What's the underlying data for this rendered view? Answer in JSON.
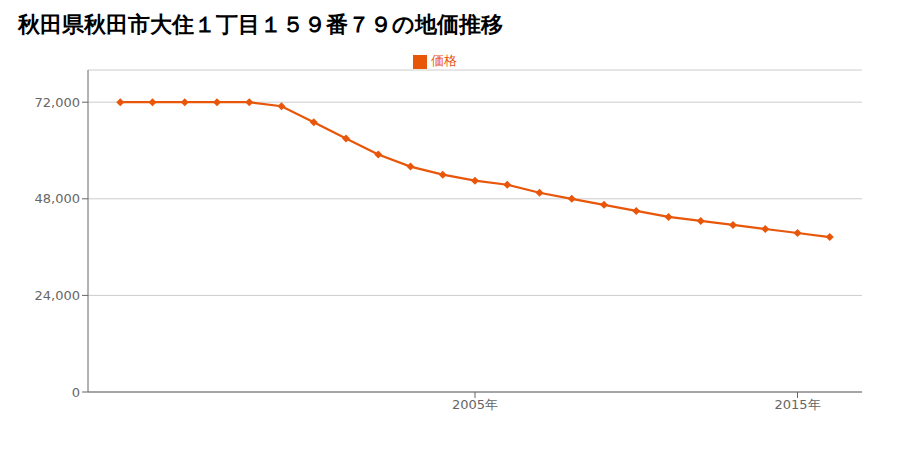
{
  "chart_data": {
    "type": "line",
    "title": "秋田県秋田市大住１丁目１５９番７９の地価推移",
    "x": [
      1994,
      1995,
      1996,
      1997,
      1998,
      1999,
      2000,
      2001,
      2002,
      2003,
      2004,
      2005,
      2006,
      2007,
      2008,
      2009,
      2010,
      2011,
      2012,
      2013,
      2014,
      2015,
      2016
    ],
    "series": [
      {
        "name": "価格",
        "color": "#e8560a",
        "marker": "diamond",
        "values": [
          72000,
          72000,
          72000,
          72000,
          72000,
          71000,
          67000,
          63000,
          59000,
          56000,
          54000,
          52500,
          51500,
          49500,
          48000,
          46500,
          45000,
          43500,
          42500,
          41500,
          40500,
          39500,
          38500
        ]
      }
    ],
    "xlim": [
      1993,
      2017
    ],
    "xticks": [
      {
        "value": 2005,
        "label": "2005年"
      },
      {
        "value": 2015,
        "label": "2015年"
      }
    ],
    "ylim": [
      0,
      80000
    ],
    "yticks": [
      0,
      {
        "value": 24000,
        "label": "24,000"
      },
      {
        "value": 48000,
        "label": "48,000"
      },
      {
        "value": 72000,
        "label": "72,000"
      }
    ],
    "grid": "y",
    "legend": "top"
  }
}
